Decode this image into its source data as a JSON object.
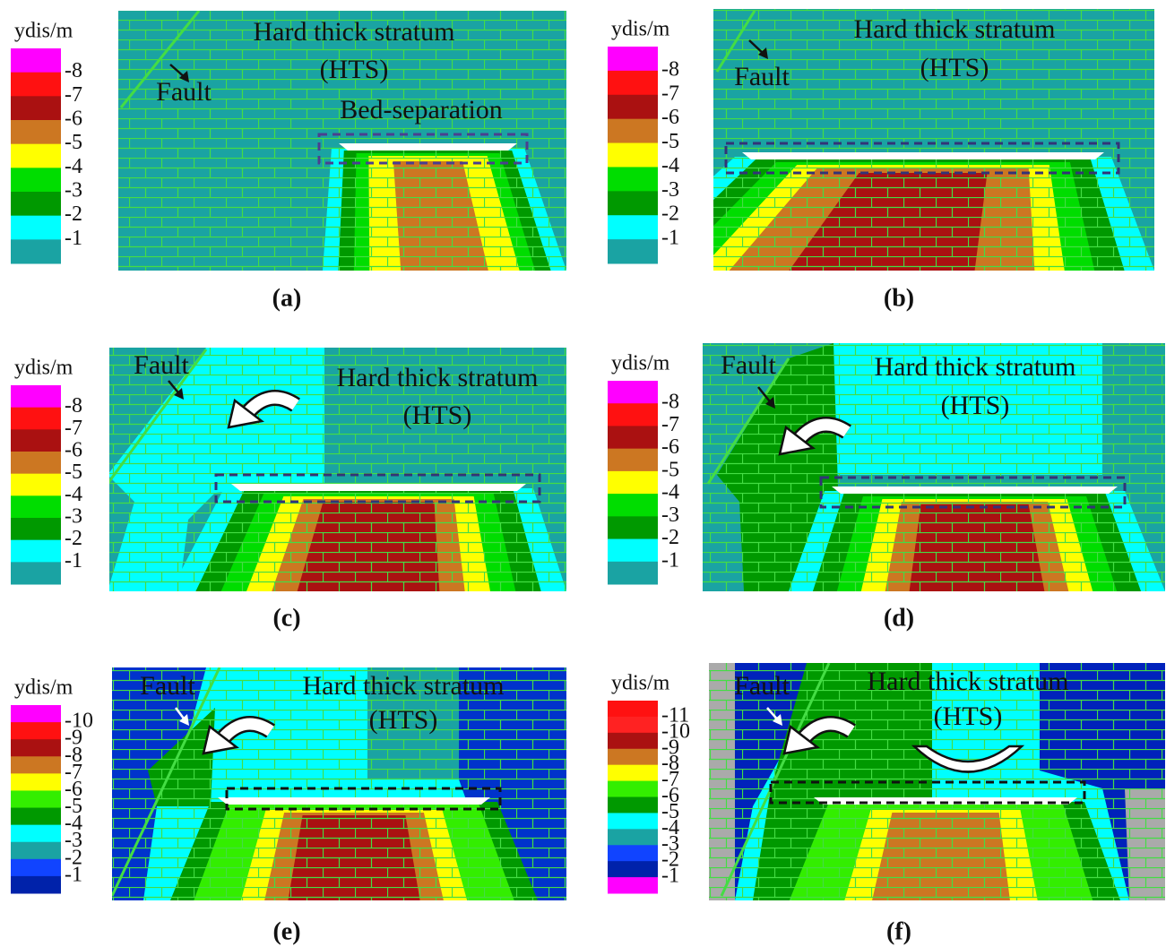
{
  "panels": [
    {
      "caption": "(a)",
      "legend_title": "ydis/m",
      "legend_labels": [
        "-8",
        "-7",
        "-6",
        "-5",
        "-4",
        "-3",
        "-2",
        "-1"
      ],
      "stratum_label": "Hard thick stratum",
      "stratum_abbr": "(HTS)",
      "fault_label": "Fault",
      "bed_separation_label": "Bed-separation"
    },
    {
      "caption": "(b)",
      "legend_title": "ydis/m",
      "legend_labels": [
        "-8",
        "-7",
        "-6",
        "-5",
        "-4",
        "-3",
        "-2",
        "-1"
      ],
      "stratum_label": "Hard thick stratum",
      "stratum_abbr": "(HTS)",
      "fault_label": "Fault"
    },
    {
      "caption": "(c)",
      "legend_title": "ydis/m",
      "legend_labels": [
        "-8",
        "-7",
        "-6",
        "-5",
        "-4",
        "-3",
        "-2",
        "-1"
      ],
      "stratum_label": "Hard thick stratum",
      "stratum_abbr": "(HTS)",
      "fault_label": "Fault"
    },
    {
      "caption": "(d)",
      "legend_title": "ydis/m",
      "legend_labels": [
        "-8",
        "-7",
        "-6",
        "-5",
        "-4",
        "-3",
        "-2",
        "-1"
      ],
      "stratum_label": "Hard thick stratum",
      "stratum_abbr": "(HTS)",
      "fault_label": "Fault"
    },
    {
      "caption": "(e)",
      "legend_title": "ydis/m",
      "legend_labels": [
        "-10",
        "-9",
        "-8",
        "-7",
        "-6",
        "-5",
        "-4",
        "-3",
        "-2",
        "-1"
      ],
      "stratum_label": "Hard thick stratum",
      "stratum_abbr": "(HTS)",
      "fault_label": "Fault"
    },
    {
      "caption": "(f)",
      "legend_title": "ydis/m",
      "legend_labels": [
        "-11",
        "-10",
        "-9",
        "-8",
        "-7",
        "-6",
        "-5",
        "-4",
        "-3",
        "-2",
        "-1"
      ],
      "stratum_label": "Hard thick stratum",
      "stratum_abbr": "(HTS)",
      "fault_label": "Fault"
    }
  ]
}
